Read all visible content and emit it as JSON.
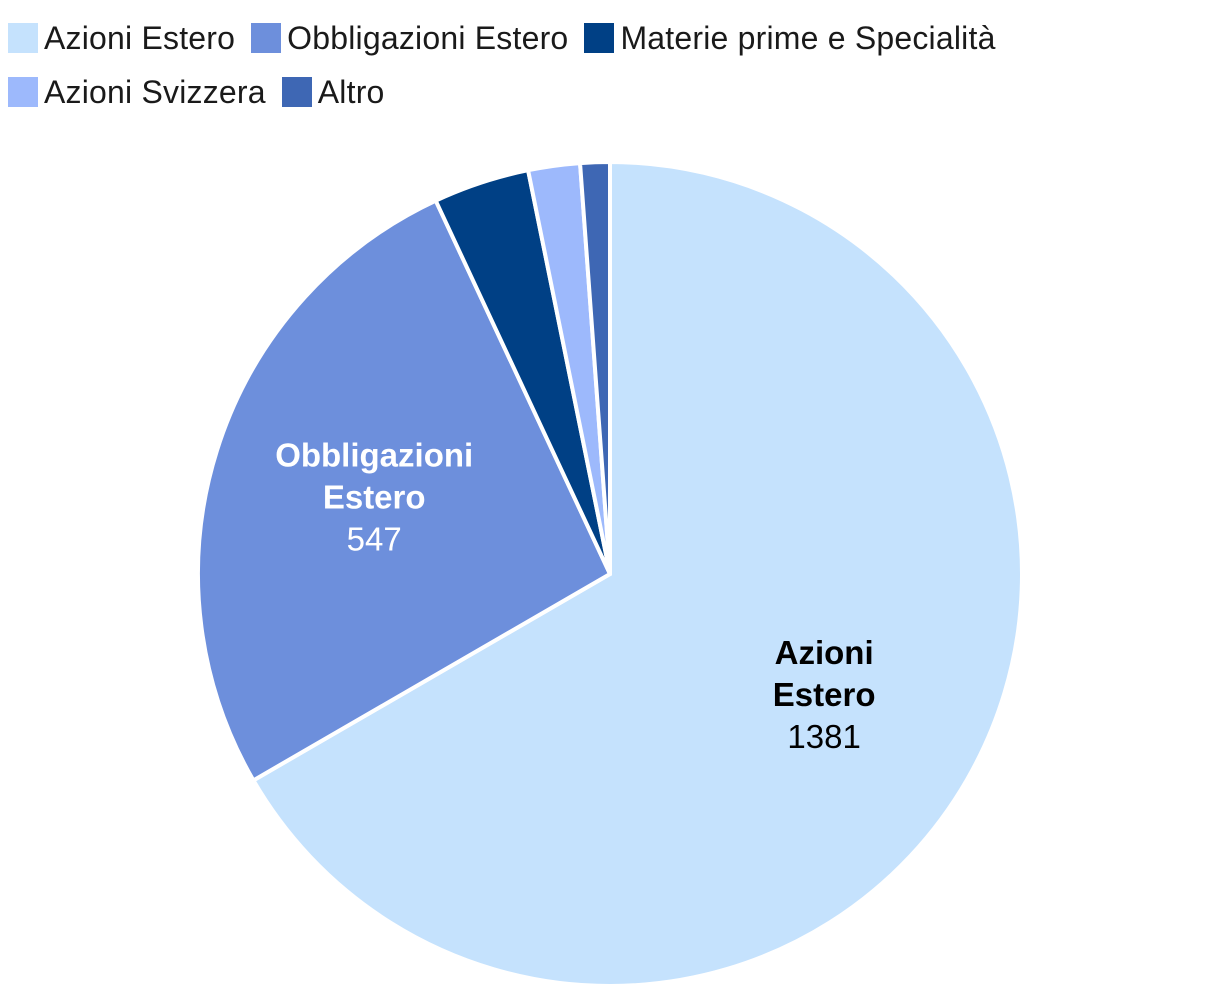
{
  "chart_data": {
    "type": "pie",
    "title": "",
    "legend_position": "top-left",
    "slices": [
      {
        "label": "Azioni Estero",
        "value": 1381,
        "color": "#c5e2fd",
        "label_color": "#000000",
        "show_label": true,
        "name_lines": [
          "Azioni",
          "Estero"
        ]
      },
      {
        "label": "Obbligazioni Estero",
        "value": 547,
        "color": "#6d8fdc",
        "label_color": "#ffffff",
        "show_label": true,
        "name_lines": [
          "Obbligazioni",
          "Estero"
        ]
      },
      {
        "label": "Materie prime e Specialità",
        "value": 78,
        "color": "#004085",
        "label_color": "#ffffff",
        "show_label": false,
        "name_lines": [
          "Materie prime e Specialità"
        ]
      },
      {
        "label": "Azioni Svizzera",
        "value": 42,
        "color": "#9db9fc",
        "label_color": "#000000",
        "show_label": false,
        "name_lines": [
          "Azioni Svizzera"
        ]
      },
      {
        "label": "Altro",
        "value": 24,
        "color": "#3e67b4",
        "label_color": "#ffffff",
        "show_label": false,
        "name_lines": [
          "Altro"
        ]
      }
    ]
  }
}
